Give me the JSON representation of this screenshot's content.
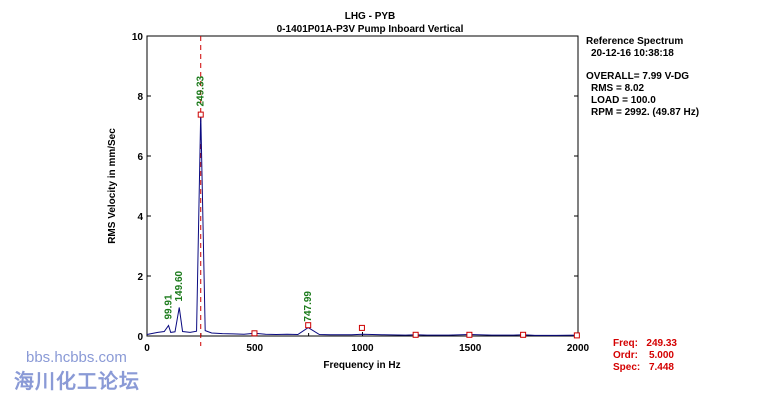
{
  "header": {
    "title": "LHG  - PYB",
    "subtitle": "0-1401P01A-P3V   Pump Inboard Vertical"
  },
  "info_panel": {
    "heading": "Reference Spectrum",
    "timestamp": "20-12-16    10:38:18",
    "overall": "OVERALL= 7.99 V-DG",
    "rms": "RMS =  8.02",
    "load": "LOAD = 100.0",
    "rpm": "RPM = 2992. (49.87 Hz)"
  },
  "cursor_readout": {
    "freq_label": "Freq:",
    "freq_value": "249.33",
    "ordr_label": "Ordr:",
    "ordr_value": "5.000",
    "spec_label": "Spec:",
    "spec_value": "7.448"
  },
  "watermark": {
    "line1": "bbs.hcbbs.com",
    "line2": "海川化工论坛"
  },
  "colors": {
    "spectrum": "#0a0a80",
    "peak_label": "#1a7a1a",
    "marker": "#cc0000",
    "cursor": "#cc0000",
    "cursor_text": "#d40000"
  },
  "chart_data": {
    "type": "line",
    "xlabel": "Frequency in Hz",
    "ylabel": "RMS Velocity in mm/Sec",
    "xlim": [
      0,
      2000
    ],
    "ylim": [
      0,
      10
    ],
    "xticks": [
      "0",
      "500",
      "1000",
      "1500",
      "2000"
    ],
    "yticks": [
      "0",
      "2",
      "4",
      "6",
      "8",
      "10"
    ],
    "cursor_x": 249.33,
    "series": [
      {
        "values_x": [
          0,
          20,
          50,
          80,
          99.91,
          110,
          130,
          149.6,
          165,
          200,
          230,
          249.33,
          270,
          300,
          350,
          400,
          450,
          500,
          550,
          600,
          650,
          700,
          747.99,
          800,
          850,
          900,
          950,
          1000,
          1100,
          1200,
          1247,
          1300,
          1400,
          1496,
          1600,
          1700,
          1746,
          1800,
          1900,
          1995,
          2000
        ],
        "values_y": [
          0.05,
          0.08,
          0.12,
          0.15,
          0.35,
          0.12,
          0.14,
          0.95,
          0.15,
          0.12,
          0.16,
          7.45,
          0.18,
          0.1,
          0.08,
          0.07,
          0.06,
          0.09,
          0.06,
          0.05,
          0.06,
          0.05,
          0.28,
          0.05,
          0.04,
          0.04,
          0.04,
          0.06,
          0.04,
          0.03,
          0.04,
          0.03,
          0.03,
          0.05,
          0.03,
          0.03,
          0.04,
          0.02,
          0.02,
          0.03,
          0.02
        ]
      }
    ],
    "peak_labels": [
      {
        "x": 99.91,
        "y": 0.35,
        "label": "99.91"
      },
      {
        "x": 149.6,
        "y": 0.95,
        "label": "149.60"
      },
      {
        "x": 249.33,
        "y": 7.45,
        "label": "249.33"
      },
      {
        "x": 747.99,
        "y": 0.28,
        "label": "747.99"
      }
    ],
    "harmonic_markers": [
      {
        "x": 249.33,
        "y": 7.38
      },
      {
        "x": 498.7,
        "y": 0.09
      },
      {
        "x": 748.0,
        "y": 0.36
      },
      {
        "x": 997.3,
        "y": 0.27
      },
      {
        "x": 1246.7,
        "y": 0.04
      },
      {
        "x": 1496.0,
        "y": 0.04
      },
      {
        "x": 1745.3,
        "y": 0.04
      },
      {
        "x": 1994.7,
        "y": 0.02
      }
    ]
  }
}
